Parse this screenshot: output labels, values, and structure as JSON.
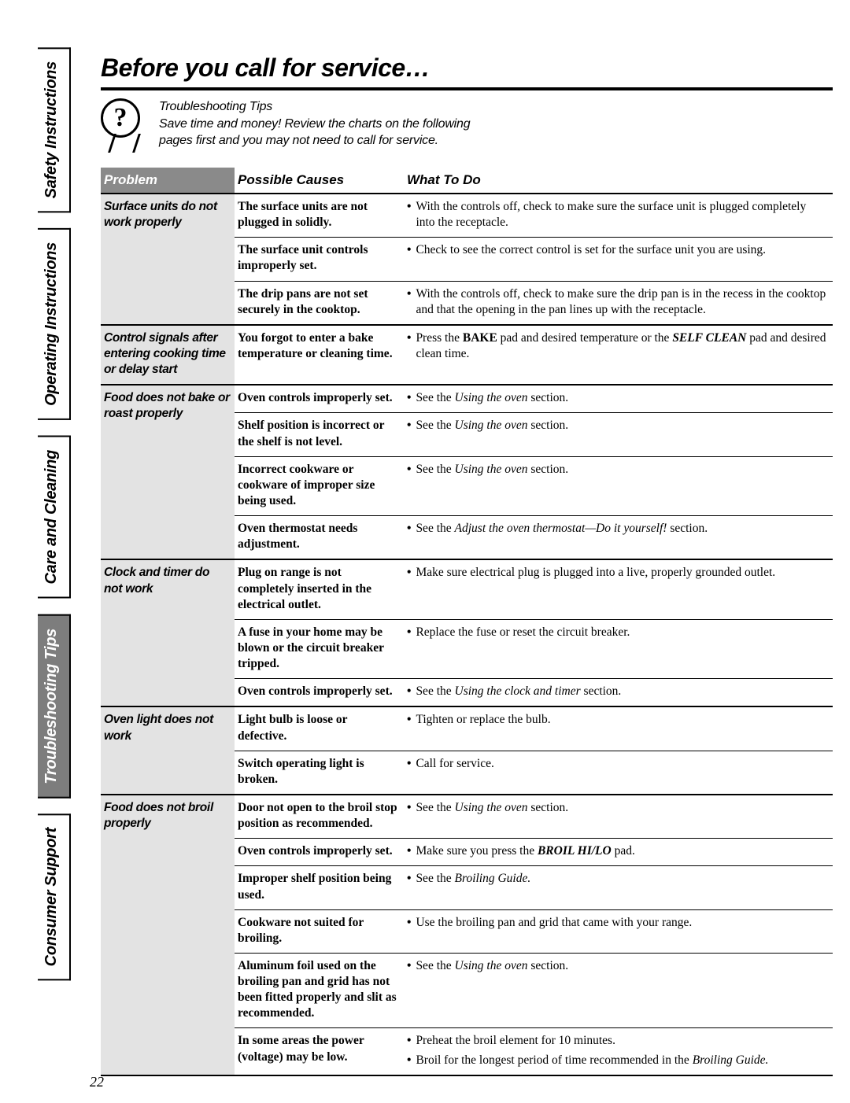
{
  "page_number": "22",
  "title": "Before you call for service…",
  "intro": {
    "heading": "Troubleshooting Tips",
    "line1": "Save time and money! Review the charts on the following",
    "line2": "pages first and you may not need to call for service."
  },
  "tabs": [
    {
      "label": "Safety Instructions",
      "active": false
    },
    {
      "label": "Operating Instructions",
      "active": false
    },
    {
      "label": "Care and Cleaning",
      "active": false
    },
    {
      "label": "Troubleshooting Tips",
      "active": true
    },
    {
      "label": "Consumer Support",
      "active": false
    }
  ],
  "headers": {
    "problem": "Problem",
    "causes": "Possible Causes",
    "todo": "What To Do"
  },
  "rows": [
    {
      "problem": "Surface units do not work properly",
      "items": [
        {
          "cause": "The surface units are not plugged in solidly.",
          "todo": [
            "With the controls off, check to make sure the surface unit is plugged completely into the receptacle."
          ]
        },
        {
          "cause": "The surface unit controls improperly set.",
          "todo": [
            "Check to see the correct control is set for the surface unit you are using."
          ]
        },
        {
          "cause": "The drip pans are not set securely in the cooktop.",
          "todo": [
            "With the controls off, check to make sure the drip pan is in the recess in the cooktop and that the opening in the pan lines up with the receptacle."
          ]
        }
      ]
    },
    {
      "problem": "Control signals after entering cooking time or delay start",
      "items": [
        {
          "cause": "You forgot to enter a bake temperature or cleaning time.",
          "todo": [
            "Press the <b>BAKE</b> pad and desired temperature or the <b><i>SELF CLEAN</i></b> pad and desired clean time."
          ]
        }
      ]
    },
    {
      "problem": "Food does not bake or roast properly",
      "items": [
        {
          "cause": "Oven controls improperly set.",
          "todo": [
            "See the <i>Using the oven</i> section."
          ]
        },
        {
          "cause": "Shelf position is incorrect or the shelf is not level.",
          "todo": [
            "See the <i>Using the oven</i> section."
          ]
        },
        {
          "cause": "Incorrect cookware or cookware of improper size being used.",
          "todo": [
            "See the <i>Using the oven</i> section."
          ]
        },
        {
          "cause": "Oven thermostat needs adjustment.",
          "todo": [
            "See the <i>Adjust the oven thermostat—Do it yourself!</i> section."
          ]
        }
      ]
    },
    {
      "problem": "Clock and timer do not work",
      "items": [
        {
          "cause": "Plug on range is not completely inserted in the electrical outlet.",
          "todo": [
            "Make sure electrical plug is plugged into a live, properly grounded outlet."
          ]
        },
        {
          "cause": "A fuse in your home may be blown or the circuit breaker tripped.",
          "todo": [
            "Replace the fuse or reset the circuit breaker."
          ]
        },
        {
          "cause": "Oven controls improperly set.",
          "todo": [
            "See the <i>Using the clock and timer</i> section."
          ]
        }
      ]
    },
    {
      "problem": "Oven light does not work",
      "items": [
        {
          "cause": "Light bulb is loose or defective.",
          "todo": [
            "Tighten or replace the bulb."
          ]
        },
        {
          "cause": "Switch operating light is broken.",
          "todo": [
            "Call for service."
          ]
        }
      ]
    },
    {
      "problem": "Food does not broil properly",
      "items": [
        {
          "cause": "Door not open to the broil stop position as recommended.",
          "todo": [
            "See the <i>Using the oven</i> section."
          ]
        },
        {
          "cause": "Oven controls improperly set.",
          "todo": [
            "Make sure you press the <b><i>BROIL HI/LO</i></b> pad."
          ]
        },
        {
          "cause": "Improper shelf position being used.",
          "todo": [
            "See the <i>Broiling Guide.</i>"
          ]
        },
        {
          "cause": "Cookware not suited for broiling.",
          "todo": [
            "Use the broiling pan and grid that came with your range."
          ]
        },
        {
          "cause": "Aluminum foil used on the broiling pan and grid has not been fitted properly and slit as recommended.",
          "todo": [
            "See the <i>Using the oven</i> section."
          ]
        },
        {
          "cause": "In some areas the power (voltage) may be low.",
          "todo": [
            "Preheat the broil element for 10 minutes.",
            "Broil for the longest period of time recommended in the <i>Broiling Guide.</i>"
          ]
        }
      ]
    }
  ]
}
